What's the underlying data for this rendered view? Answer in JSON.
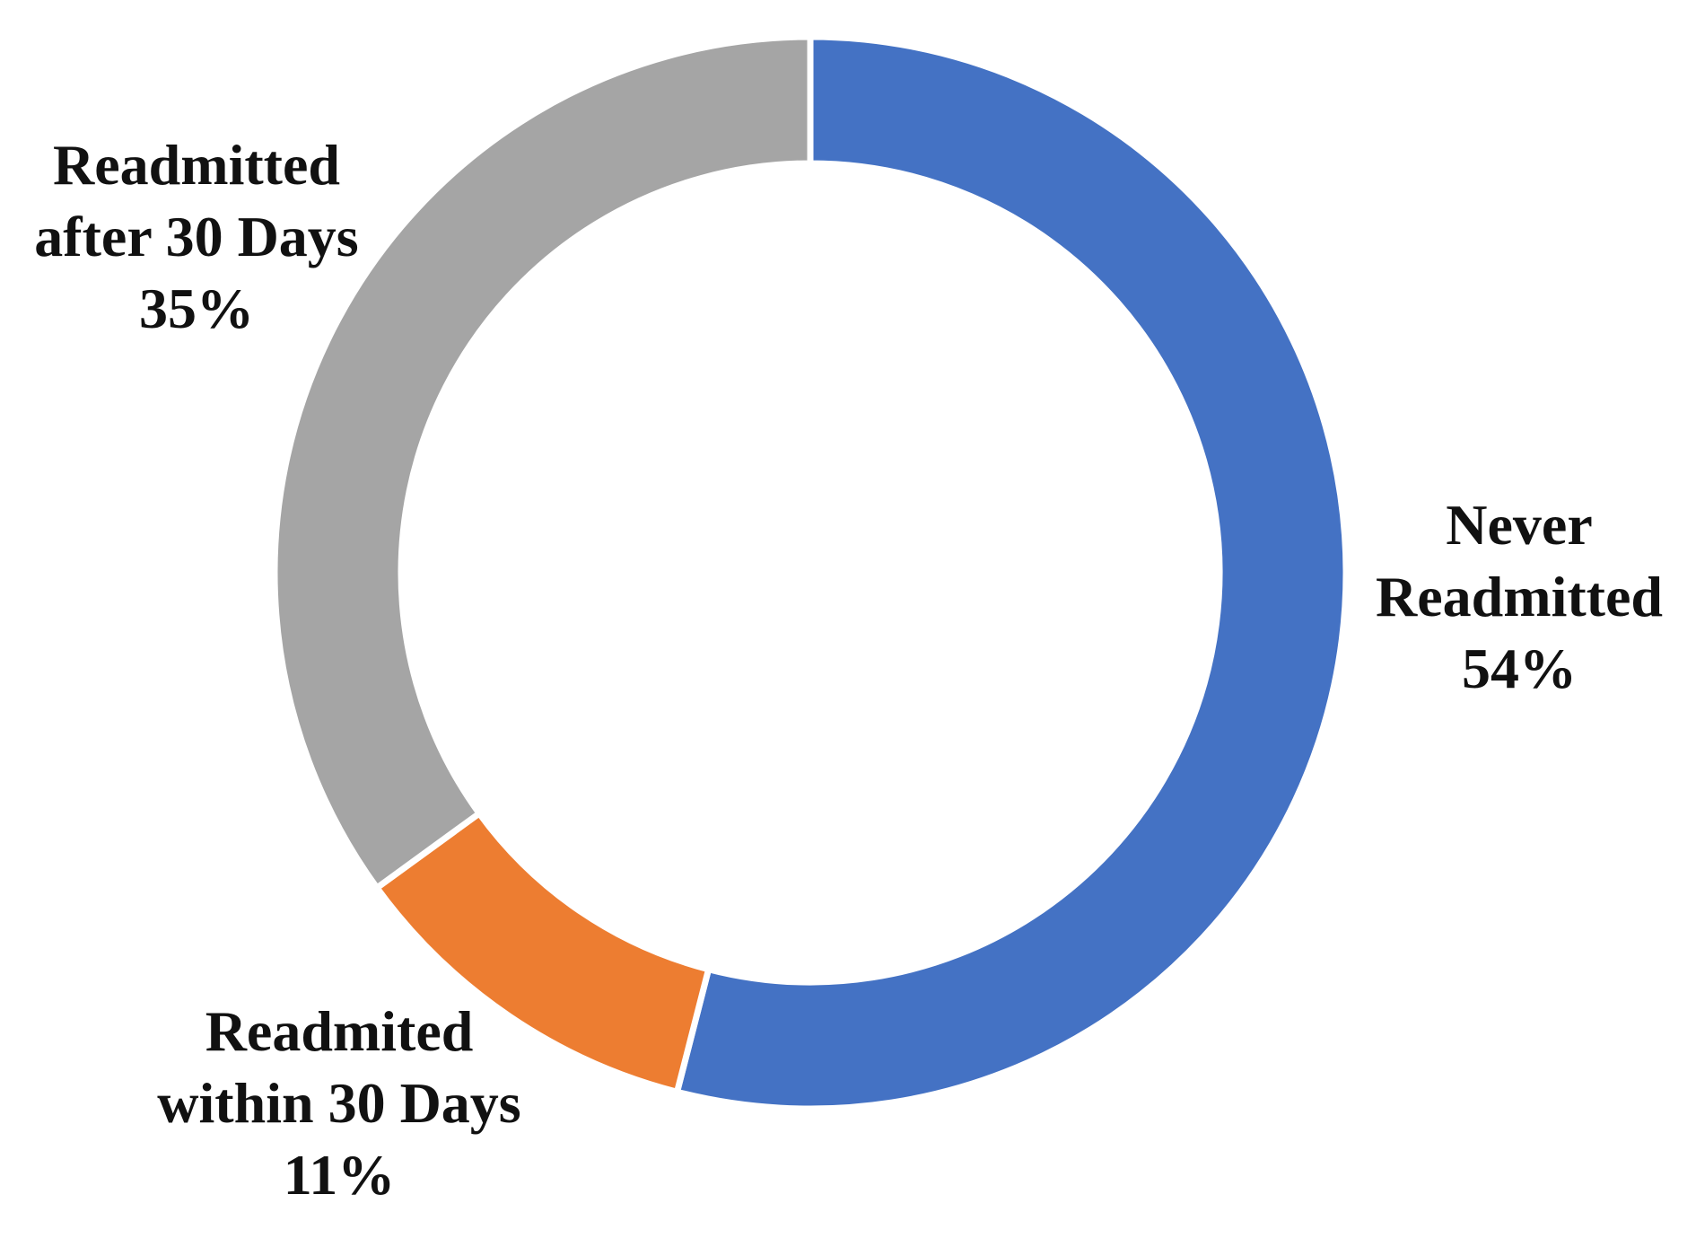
{
  "chart_data": {
    "type": "pie",
    "variant": "donut",
    "title": "",
    "legend": "none",
    "slices": [
      {
        "label_lines": [
          "Never",
          "Readmitted"
        ],
        "percent_label": "54%",
        "value": 54,
        "color": "#4472C4"
      },
      {
        "label_lines": [
          "Readmited",
          "within 30 Days"
        ],
        "percent_label": "11%",
        "value": 11,
        "color": "#ED7D31"
      },
      {
        "label_lines": [
          "Readmitted",
          "after 30 Days"
        ],
        "percent_label": "35%",
        "value": 35,
        "color": "#A5A5A5"
      }
    ]
  }
}
